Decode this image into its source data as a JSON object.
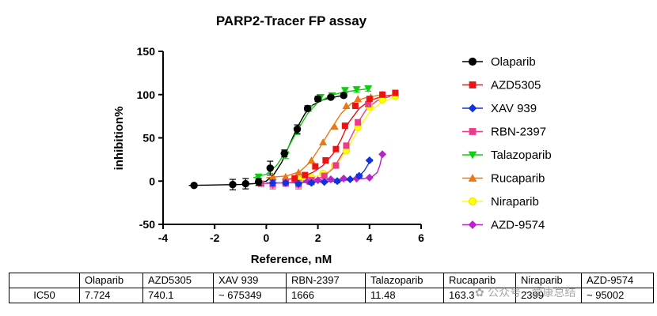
{
  "chart_data": {
    "type": "scatter",
    "title": "PARP2-Tracer FP assay",
    "xlabel": "Reference, nM",
    "ylabel": "inhibition%",
    "xlim": [
      -4,
      6
    ],
    "ylim": [
      -50,
      150
    ],
    "xticks": [
      -4,
      -2,
      0,
      2,
      4,
      6
    ],
    "yticks": [
      -50,
      0,
      50,
      100,
      150
    ],
    "legend_position": "right",
    "series": [
      {
        "name": "Olaparib",
        "color": "#000000",
        "marker": "circle",
        "x": [
          -2.8,
          -1.3,
          -0.8,
          -0.3,
          0.15,
          0.7,
          1.2,
          1.6,
          2.0,
          2.5,
          3.0
        ],
        "y": [
          -5,
          -4,
          -3,
          -1,
          15,
          32,
          60,
          84,
          95,
          97,
          99
        ],
        "err": [
          0,
          6,
          6,
          4,
          8,
          4,
          5,
          3,
          3,
          2,
          2
        ],
        "fit": [
          [
            -3,
            -5
          ],
          [
            -1,
            -4
          ],
          [
            -0.5,
            -3
          ],
          [
            0,
            0
          ],
          [
            0.3,
            8
          ],
          [
            0.6,
            22
          ],
          [
            0.9,
            42
          ],
          [
            1.2,
            62
          ],
          [
            1.5,
            78
          ],
          [
            1.8,
            88
          ],
          [
            2.2,
            94
          ],
          [
            2.6,
            97
          ],
          [
            3.0,
            99
          ]
        ]
      },
      {
        "name": "AZD5305",
        "color": "#ee1111",
        "marker": "square",
        "x": [
          1.1,
          1.5,
          1.9,
          2.3,
          2.7,
          3.05,
          3.45,
          4.0,
          4.5,
          5.0
        ],
        "y": [
          3,
          7,
          17,
          24,
          37,
          64,
          87,
          95,
          100,
          102
        ],
        "err": [
          0,
          0,
          0,
          0,
          0,
          0,
          0,
          0,
          0,
          0
        ],
        "fit": [
          [
            0.8,
            2
          ],
          [
            1.3,
            4
          ],
          [
            1.8,
            10
          ],
          [
            2.2,
            18
          ],
          [
            2.6,
            32
          ],
          [
            2.9,
            48
          ],
          [
            3.2,
            68
          ],
          [
            3.6,
            84
          ],
          [
            4.0,
            93
          ],
          [
            4.5,
            98
          ],
          [
            5.0,
            100
          ]
        ]
      },
      {
        "name": "XAV 939",
        "color": "#1133dd",
        "marker": "diamond",
        "x": [
          0.25,
          0.75,
          1.25,
          1.75,
          2.25,
          2.75,
          3.25,
          3.6,
          4.0
        ],
        "y": [
          -2,
          -2,
          -3,
          -2,
          -1,
          0,
          2,
          6,
          24
        ],
        "err": [
          3,
          2,
          2,
          2,
          1,
          2,
          1,
          2,
          1
        ],
        "fit": [
          [
            0,
            -2
          ],
          [
            1.0,
            -2
          ],
          [
            2.0,
            -1
          ],
          [
            2.8,
            0
          ],
          [
            3.3,
            2
          ],
          [
            3.6,
            6
          ],
          [
            3.8,
            12
          ],
          [
            4.0,
            22
          ]
        ]
      },
      {
        "name": "RBN-2397",
        "color": "#ee3a8c",
        "marker": "square",
        "x": [
          -0.2,
          0.25,
          0.75,
          1.25,
          1.75,
          2.25,
          2.7,
          3.1,
          3.55,
          3.95
        ],
        "y": [
          -3,
          -4,
          -2,
          -4,
          1,
          6,
          18,
          41,
          68,
          89
        ],
        "err": [
          3,
          5,
          4,
          5,
          3,
          3,
          3,
          3,
          3,
          3
        ],
        "fit": [
          [
            -0.3,
            -3
          ],
          [
            0.8,
            -2
          ],
          [
            1.6,
            0
          ],
          [
            2.2,
            5
          ],
          [
            2.6,
            15
          ],
          [
            3.0,
            34
          ],
          [
            3.3,
            52
          ],
          [
            3.6,
            70
          ],
          [
            3.9,
            84
          ],
          [
            4.3,
            93
          ],
          [
            4.8,
            98
          ]
        ]
      },
      {
        "name": "Talazoparib",
        "color": "#11cc11",
        "marker": "triangle-down",
        "x": [
          -0.3,
          0.15,
          0.75,
          1.2,
          1.65,
          2.1,
          2.55,
          3.05,
          3.5,
          3.95
        ],
        "y": [
          5,
          13,
          30,
          58,
          84,
          97,
          99,
          105,
          106,
          107
        ],
        "err": [
          3,
          4,
          4,
          4,
          3,
          3,
          3,
          3,
          3,
          3
        ],
        "fit": [
          [
            -0.5,
            4
          ],
          [
            0,
            8
          ],
          [
            0.4,
            18
          ],
          [
            0.8,
            36
          ],
          [
            1.2,
            58
          ],
          [
            1.6,
            78
          ],
          [
            2.0,
            91
          ],
          [
            2.5,
            99
          ],
          [
            3.0,
            103
          ],
          [
            3.5,
            105
          ],
          [
            4.0,
            107
          ]
        ]
      },
      {
        "name": "Rucaparib",
        "color": "#ee7711",
        "marker": "triangle-up",
        "x": [
          0.25,
          0.75,
          1.25,
          1.75,
          2.2,
          2.65,
          3.1,
          3.55,
          4.05,
          4.5
        ],
        "y": [
          5,
          5,
          10,
          24,
          45,
          63,
          87,
          95,
          97,
          100
        ],
        "err": [
          0,
          0,
          0,
          0,
          0,
          0,
          0,
          0,
          0,
          0
        ],
        "fit": [
          [
            0,
            4
          ],
          [
            0.8,
            6
          ],
          [
            1.3,
            11
          ],
          [
            1.7,
            22
          ],
          [
            2.1,
            40
          ],
          [
            2.5,
            60
          ],
          [
            2.9,
            78
          ],
          [
            3.3,
            90
          ],
          [
            3.8,
            96
          ],
          [
            4.5,
            100
          ]
        ]
      },
      {
        "name": "Niraparib",
        "color": "#ffff00",
        "marker": "circle",
        "x": [
          1.3,
          1.75,
          2.2,
          2.65,
          3.1,
          3.55,
          4.0,
          4.5,
          5.0
        ],
        "y": [
          2,
          4,
          9,
          18,
          35,
          62,
          86,
          94,
          98
        ],
        "err": [
          0,
          0,
          0,
          0,
          0,
          0,
          0,
          0,
          0
        ],
        "fit": [
          [
            1.0,
            1
          ],
          [
            1.8,
            4
          ],
          [
            2.4,
            11
          ],
          [
            2.8,
            22
          ],
          [
            3.2,
            40
          ],
          [
            3.6,
            62
          ],
          [
            4.0,
            80
          ],
          [
            4.5,
            92
          ],
          [
            5.0,
            97
          ]
        ]
      },
      {
        "name": "AZD-9574",
        "color": "#bb22cc",
        "marker": "diamond",
        "x": [
          1.2,
          1.6,
          2.0,
          2.5,
          3.0,
          3.5,
          4.0,
          4.5
        ],
        "y": [
          0,
          0,
          1,
          2,
          3,
          3,
          4,
          31
        ],
        "err": [
          0,
          0,
          0,
          0,
          0,
          0,
          0,
          0
        ],
        "fit": [
          [
            1.0,
            0
          ],
          [
            2.0,
            1
          ],
          [
            3.0,
            2
          ],
          [
            3.8,
            3
          ],
          [
            4.1,
            5
          ],
          [
            4.3,
            10
          ],
          [
            4.4,
            18
          ],
          [
            4.5,
            31
          ]
        ]
      }
    ]
  },
  "table": {
    "headers": [
      "",
      "Olaparib",
      "AZD5305",
      "XAV 939",
      "RBN-2397",
      "Talazoparib",
      "Rucaparib",
      "Niraparib",
      "AZD-9574"
    ],
    "rows": [
      [
        "IC50",
        "7.724",
        "740.1",
        "~ 675349",
        "1666",
        "11.48",
        "163.3",
        "2399",
        "~ 95002"
      ]
    ]
  },
  "watermark": "✿ 公众号 · 爱康总结"
}
